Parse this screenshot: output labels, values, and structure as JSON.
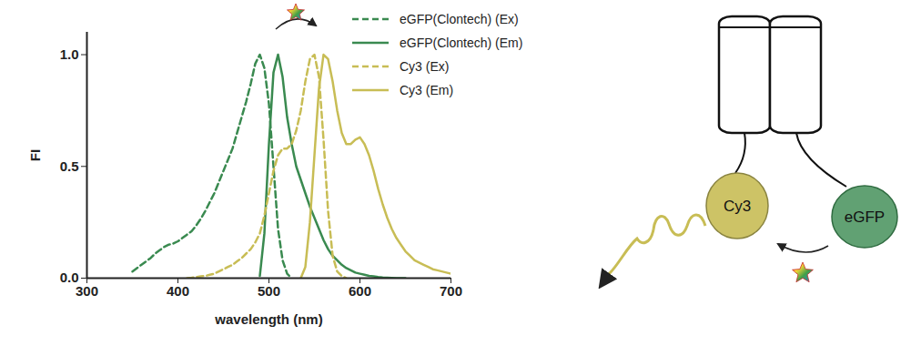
{
  "chart_data": {
    "type": "line",
    "x_label": "wavelength (nm)",
    "y_label": "FI",
    "x": [
      350,
      355,
      360,
      365,
      370,
      375,
      380,
      385,
      390,
      395,
      400,
      405,
      410,
      415,
      420,
      425,
      430,
      435,
      440,
      445,
      450,
      455,
      460,
      465,
      470,
      475,
      480,
      485,
      490,
      495,
      500,
      505,
      510,
      515,
      520,
      525,
      530,
      535,
      540,
      545,
      550,
      555,
      560,
      565,
      570,
      575,
      580,
      585,
      590,
      595,
      600,
      605,
      610,
      615,
      620,
      625,
      630,
      635,
      640,
      645,
      650,
      655,
      660,
      665,
      670,
      675,
      680,
      685,
      690,
      695,
      700
    ],
    "xlim": [
      300,
      700
    ],
    "xticks": [
      300,
      400,
      500,
      600,
      700
    ],
    "ylim": [
      0,
      1.1
    ],
    "yticks": [
      {
        "value": 0,
        "label": "0.0"
      },
      {
        "value": 0.5,
        "label": "0.5"
      },
      {
        "value": 1,
        "label": "1.0"
      }
    ],
    "legend": "top-right",
    "series": [
      {
        "name": "eGFP(Clontech) (Ex)",
        "color": "#3a8a50",
        "line_style": "dashed",
        "values": [
          0.03,
          0.045,
          0.06,
          0.075,
          0.09,
          0.11,
          0.125,
          0.14,
          0.15,
          0.155,
          0.165,
          0.18,
          0.195,
          0.21,
          0.235,
          0.265,
          0.3,
          0.34,
          0.38,
          0.43,
          0.48,
          0.53,
          0.58,
          0.65,
          0.72,
          0.79,
          0.87,
          0.96,
          1.0,
          0.94,
          0.78,
          0.5,
          0.22,
          0.08,
          0.02,
          0,
          null,
          null,
          null,
          null,
          null,
          null,
          null,
          null,
          null,
          null,
          null,
          null,
          null,
          null,
          null,
          null,
          null,
          null,
          null,
          null,
          null,
          null,
          null,
          null,
          null,
          null,
          null,
          null,
          null,
          null,
          null,
          null,
          null,
          null,
          null
        ]
      },
      {
        "name": "eGFP(Clontech) (Em)",
        "color": "#3a8a50",
        "line_style": "solid",
        "values": [
          null,
          null,
          null,
          null,
          null,
          null,
          null,
          null,
          null,
          null,
          null,
          null,
          null,
          null,
          null,
          null,
          null,
          null,
          null,
          null,
          null,
          null,
          null,
          null,
          null,
          null,
          null,
          null,
          0.01,
          0.2,
          0.6,
          0.92,
          1.0,
          0.9,
          0.72,
          0.6,
          0.5,
          0.44,
          0.38,
          0.32,
          0.27,
          0.22,
          0.17,
          0.13,
          0.1,
          0.08,
          0.06,
          0.045,
          0.035,
          0.025,
          0.02,
          0.015,
          0.01,
          0.008,
          0.005,
          0.003,
          0.002,
          0.001,
          0,
          0,
          0,
          null,
          null,
          null,
          null,
          null,
          null,
          null,
          null,
          null,
          null
        ]
      },
      {
        "name": "Cy3 (Ex)",
        "color": "#c8bd55",
        "line_style": "dashed",
        "values": [
          null,
          null,
          null,
          null,
          null,
          null,
          null,
          null,
          null,
          null,
          null,
          null,
          0,
          0.002,
          0.005,
          0.008,
          0.01,
          0.015,
          0.02,
          0.03,
          0.04,
          0.05,
          0.06,
          0.075,
          0.09,
          0.11,
          0.13,
          0.16,
          0.2,
          0.28,
          0.38,
          0.48,
          0.55,
          0.58,
          0.58,
          0.6,
          0.66,
          0.75,
          0.88,
          0.98,
          1.0,
          0.9,
          0.62,
          0.3,
          0.1,
          0.03,
          0.01,
          0,
          null,
          null,
          null,
          null,
          null,
          null,
          null,
          null,
          null,
          null,
          null,
          null,
          null,
          null,
          null,
          null,
          null,
          null,
          null,
          null,
          null,
          null,
          null
        ]
      },
      {
        "name": "Cy3 (Em)",
        "color": "#c8bd55",
        "line_style": "solid",
        "values": [
          null,
          null,
          null,
          null,
          null,
          null,
          null,
          null,
          null,
          null,
          null,
          null,
          null,
          null,
          null,
          null,
          null,
          null,
          null,
          null,
          null,
          null,
          null,
          null,
          null,
          null,
          null,
          null,
          null,
          null,
          null,
          null,
          null,
          null,
          null,
          null,
          null,
          0,
          0.05,
          0.25,
          0.55,
          0.85,
          1.0,
          0.98,
          0.88,
          0.75,
          0.65,
          0.6,
          0.6,
          0.62,
          0.63,
          0.6,
          0.55,
          0.48,
          0.4,
          0.33,
          0.27,
          0.22,
          0.18,
          0.15,
          0.12,
          0.1,
          0.08,
          0.07,
          0.06,
          0.05,
          0.04,
          0.035,
          0.03,
          0.025,
          0.02
        ]
      }
    ],
    "annotations": [
      "Cy3",
      "eGFP"
    ]
  }
}
